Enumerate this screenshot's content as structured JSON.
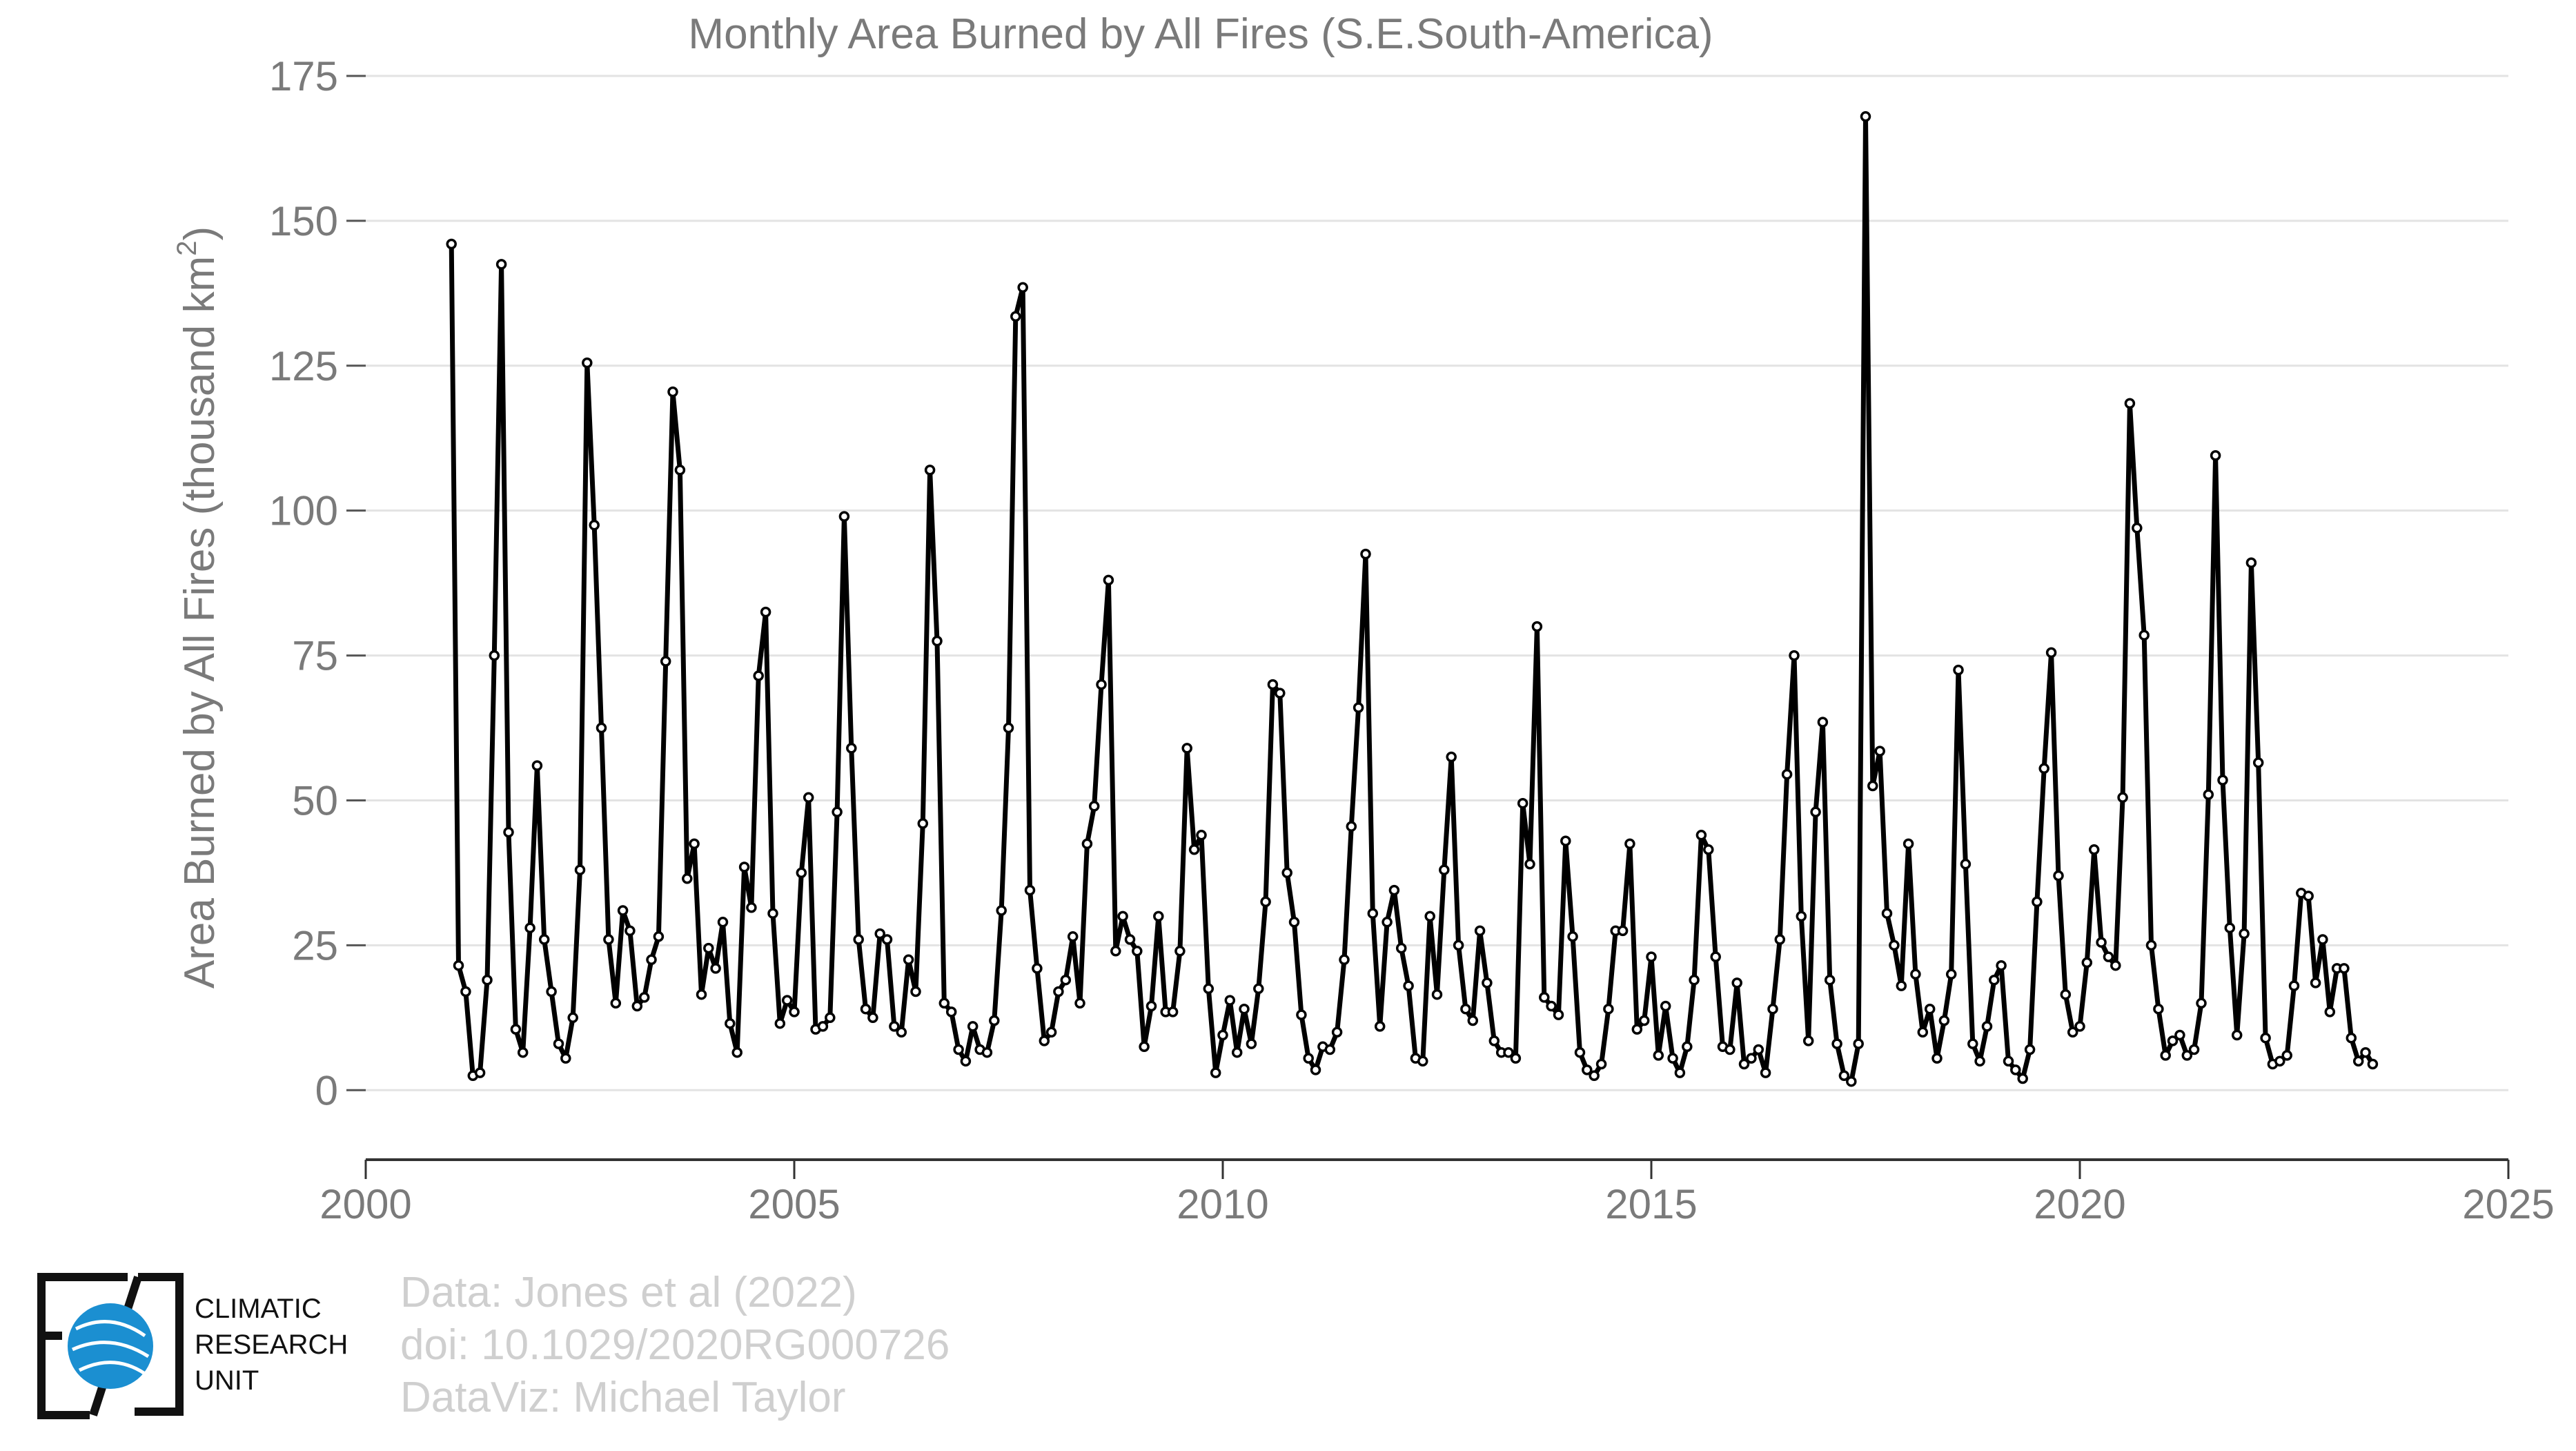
{
  "chart_data": {
    "type": "line",
    "title": "Monthly Area Burned by All Fires (S.E.South-America)",
    "ylabel_main": "Area Burned by All Fires (thousand km",
    "ylabel_sup": "2",
    "ylabel_end": ")",
    "xlabel": "",
    "xlim": [
      2000,
      2025
    ],
    "ylim": [
      -12,
      175
    ],
    "x_ticks": [
      "2000",
      "2005",
      "2010",
      "2015",
      "2020",
      "2025"
    ],
    "y_ticks": [
      "0",
      "25",
      "50",
      "75",
      "100",
      "125",
      "150",
      "175"
    ],
    "grid": "horizontal",
    "line_color": "#000000",
    "marker_fill": "#ffffff",
    "start_year": 2001,
    "series": [
      {
        "values": [
          146,
          21.5,
          17,
          2.5,
          3,
          19,
          75,
          142.5,
          44.5,
          10.5,
          6.5,
          28,
          56,
          26,
          17,
          8,
          5.5,
          12.5,
          38,
          125.5,
          97.5,
          62.5,
          26,
          15,
          31,
          27.5,
          14.5,
          16,
          22.5,
          26.5,
          74,
          120.5,
          107,
          36.5,
          42.5,
          16.5,
          24.5,
          21,
          29,
          11.5,
          6.5,
          38.5,
          31.5,
          71.5,
          82.5,
          30.5,
          11.5,
          15.5,
          13.5,
          37.5,
          50.5,
          10.5,
          11,
          12.5,
          48,
          99,
          59,
          26,
          14,
          12.5,
          27,
          26,
          11,
          10,
          22.5,
          17,
          46,
          107,
          77.5,
          15,
          13.5,
          7,
          5,
          11,
          7,
          6.5,
          12,
          31,
          62.5,
          133.5,
          138.5,
          34.5,
          21,
          8.5,
          10,
          17,
          19,
          26.5,
          15,
          42.5,
          49,
          70,
          88,
          24,
          30,
          26,
          24,
          7.5,
          14.5,
          30,
          13.5,
          13.5,
          24,
          59,
          41.5,
          44,
          17.5,
          3,
          9.5,
          15.5,
          6.5,
          14,
          8,
          17.5,
          32.5,
          70,
          68.5,
          37.5,
          29,
          13,
          5.5,
          3.5,
          7.5,
          7,
          10,
          22.5,
          45.5,
          66,
          92.5,
          30.5,
          11,
          29,
          34.5,
          24.5,
          18,
          5.5,
          5,
          30,
          16.5,
          38,
          57.5,
          25,
          14,
          12,
          27.5,
          18.5,
          8.5,
          6.5,
          6.5,
          5.5,
          49.5,
          39,
          80,
          16,
          14.5,
          13,
          43,
          26.5,
          6.5,
          3.5,
          2.5,
          4.5,
          14,
          27.5,
          27.5,
          42.5,
          10.5,
          12,
          23,
          6,
          14.5,
          5.5,
          3,
          7.5,
          19,
          44,
          41.5,
          23,
          7.5,
          7,
          18.5,
          4.5,
          5.5,
          7,
          3,
          14,
          26,
          54.5,
          75,
          30,
          8.5,
          48,
          63.5,
          19,
          8,
          2.5,
          1.5,
          8,
          168,
          52.5,
          58.5,
          30.5,
          25,
          18,
          42.5,
          20,
          10,
          14,
          5.5,
          12,
          20,
          72.5,
          39,
          8,
          5,
          11,
          19,
          21.5,
          5,
          3.5,
          2,
          7,
          32.5,
          55.5,
          75.5,
          37,
          16.5,
          10,
          11,
          22,
          41.5,
          25.5,
          23,
          21.5,
          50.5,
          118.5,
          97,
          78.5,
          25,
          14,
          6,
          8.5,
          9.5,
          6,
          7,
          15,
          51,
          109.5,
          53.5,
          28,
          9.5,
          27,
          91,
          56.5,
          9,
          4.5,
          5,
          6,
          18,
          34,
          33.5,
          18.5,
          26,
          13.5,
          21,
          21,
          9,
          5,
          6.5,
          4.5
        ]
      }
    ]
  },
  "credits": {
    "line1": "Data: Jones et al (2022)",
    "line2": "doi: 10.1029/2020RG000726",
    "line3": "DataViz: Michael Taylor"
  },
  "logo": {
    "line1": "CLIMATIC",
    "line2": "RESEARCH",
    "line3": "UNIT",
    "color": "#1b8fd1"
  }
}
